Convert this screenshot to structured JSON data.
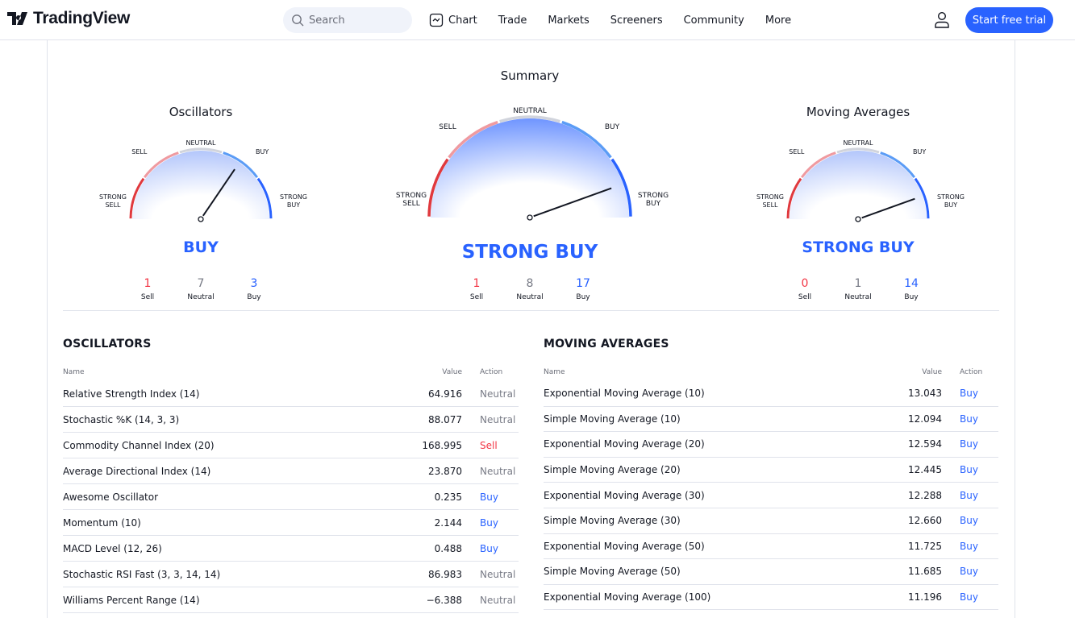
{
  "header": {
    "brand": "TradingView",
    "search_placeholder": "Search",
    "nav": [
      "Chart",
      "Trade",
      "Markets",
      "Screeners",
      "Community",
      "More"
    ],
    "cta": "Start free trial"
  },
  "colors": {
    "strong_sell": "#e0393e",
    "sell": "#ef9aa0",
    "neutral": "#d1d4dc",
    "buy": "#5b9cf6",
    "strong_buy": "#2962ff",
    "accent": "#2962ff"
  },
  "gauge_labels": {
    "strong_sell": [
      "STRONG",
      "SELL"
    ],
    "sell": "SELL",
    "neutral": "NEUTRAL",
    "buy": "BUY",
    "strong_buy": [
      "STRONG",
      "BUY"
    ]
  },
  "gauges": [
    {
      "title": "Oscillators",
      "verdict": "BUY",
      "needle": 0.69,
      "counts": [
        {
          "n": "1",
          "l": "Sell"
        },
        {
          "n": "7",
          "l": "Neutral"
        },
        {
          "n": "3",
          "l": "Buy"
        }
      ]
    },
    {
      "title": "Summary",
      "verdict": "STRONG BUY",
      "needle": 0.89,
      "counts": [
        {
          "n": "1",
          "l": "Sell"
        },
        {
          "n": "8",
          "l": "Neutral"
        },
        {
          "n": "17",
          "l": "Buy"
        }
      ]
    },
    {
      "title": "Moving Averages",
      "verdict": "STRONG BUY",
      "needle": 0.89,
      "counts": [
        {
          "n": "0",
          "l": "Sell"
        },
        {
          "n": "1",
          "l": "Neutral"
        },
        {
          "n": "14",
          "l": "Buy"
        }
      ]
    }
  ],
  "oscillators": {
    "title": "OSCILLATORS",
    "columns": [
      "Name",
      "Value",
      "Action"
    ],
    "rows": [
      [
        "Relative Strength Index (14)",
        "64.916",
        "Neutral"
      ],
      [
        "Stochastic %K (14, 3, 3)",
        "88.077",
        "Neutral"
      ],
      [
        "Commodity Channel Index (20)",
        "168.995",
        "Sell"
      ],
      [
        "Average Directional Index (14)",
        "23.870",
        "Neutral"
      ],
      [
        "Awesome Oscillator",
        "0.235",
        "Buy"
      ],
      [
        "Momentum (10)",
        "2.144",
        "Buy"
      ],
      [
        "MACD Level (12, 26)",
        "0.488",
        "Buy"
      ],
      [
        "Stochastic RSI Fast (3, 3, 14, 14)",
        "86.983",
        "Neutral"
      ],
      [
        "Williams Percent Range (14)",
        "−6.388",
        "Neutral"
      ]
    ]
  },
  "moving_averages": {
    "title": "MOVING AVERAGES",
    "columns": [
      "Name",
      "Value",
      "Action"
    ],
    "rows": [
      [
        "Exponential Moving Average (10)",
        "13.043",
        "Buy"
      ],
      [
        "Simple Moving Average (10)",
        "12.094",
        "Buy"
      ],
      [
        "Exponential Moving Average (20)",
        "12.594",
        "Buy"
      ],
      [
        "Simple Moving Average (20)",
        "12.445",
        "Buy"
      ],
      [
        "Exponential Moving Average (30)",
        "12.288",
        "Buy"
      ],
      [
        "Simple Moving Average (30)",
        "12.660",
        "Buy"
      ],
      [
        "Exponential Moving Average (50)",
        "11.725",
        "Buy"
      ],
      [
        "Simple Moving Average (50)",
        "11.685",
        "Buy"
      ],
      [
        "Exponential Moving Average (100)",
        "11.196",
        "Buy"
      ]
    ]
  }
}
